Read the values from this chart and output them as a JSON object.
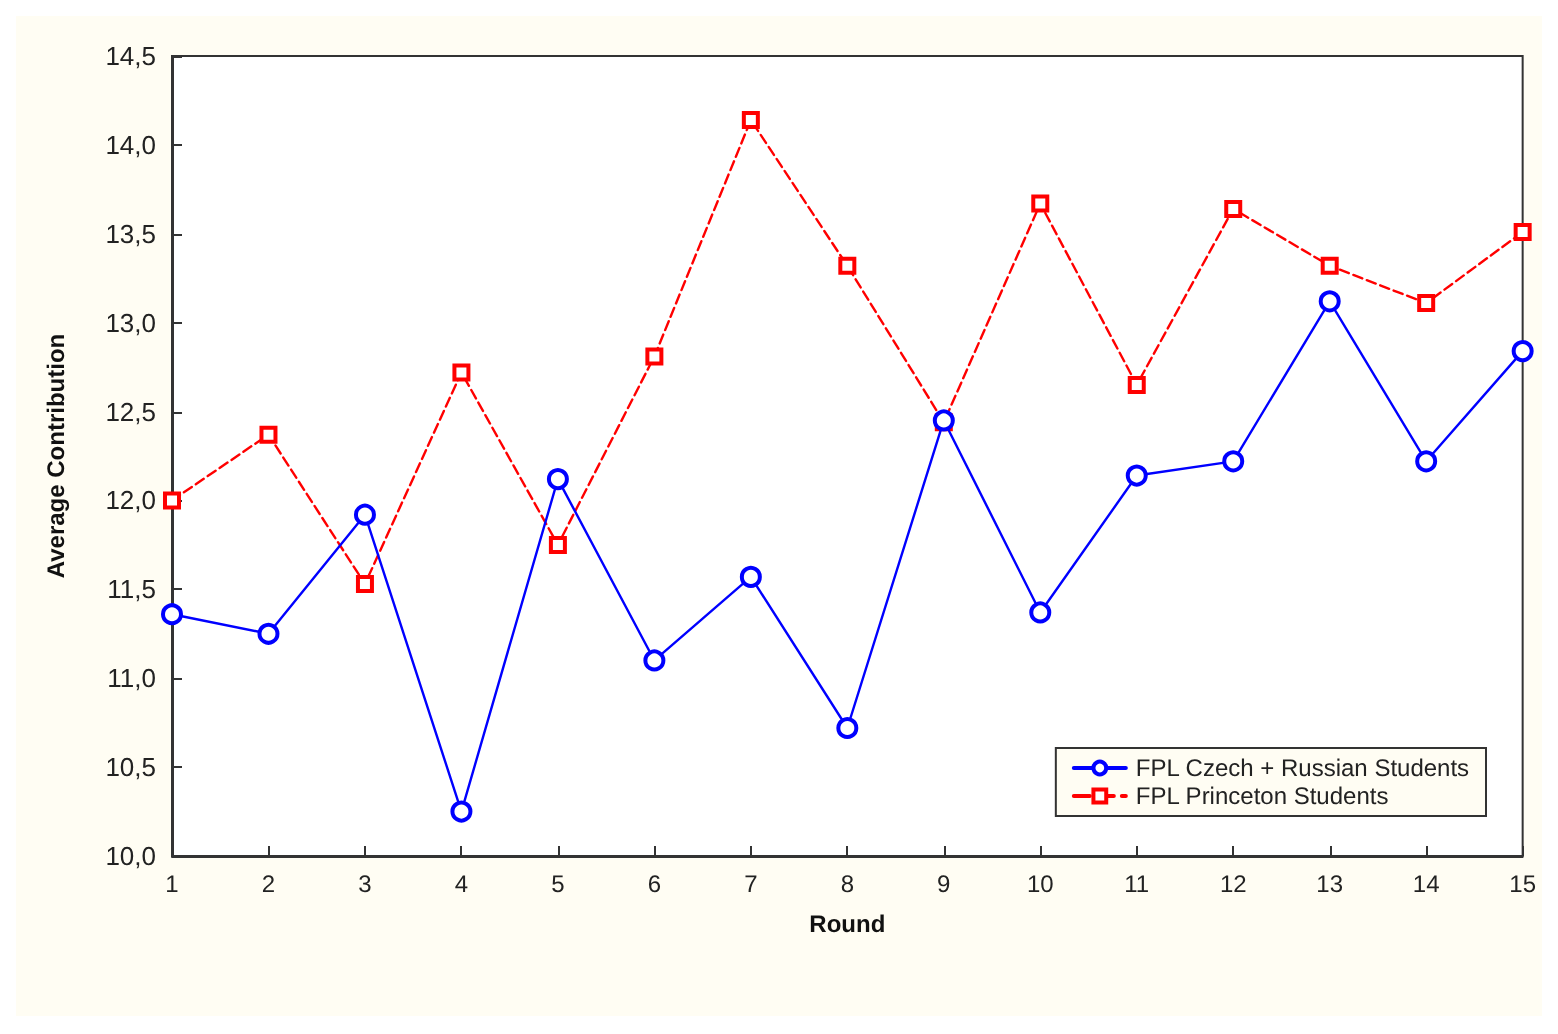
{
  "chart_data": {
    "type": "line",
    "xlabel": "Round",
    "ylabel": "Average Contribution",
    "x": [
      1,
      2,
      3,
      4,
      5,
      6,
      7,
      8,
      9,
      10,
      11,
      12,
      13,
      14,
      15
    ],
    "series": [
      {
        "name": "FPL Czech + Russian Students",
        "color": "#0000ff",
        "marker": "circle",
        "line_style": "solid",
        "values": [
          11.36,
          11.25,
          11.92,
          10.25,
          12.12,
          11.1,
          11.57,
          10.72,
          12.45,
          11.37,
          12.14,
          12.22,
          13.12,
          12.22,
          12.84
        ]
      },
      {
        "name": "FPL Princeton Students",
        "color": "#ff0000",
        "marker": "square",
        "line_style": "dashed",
        "values": [
          12.0,
          12.37,
          11.53,
          12.72,
          11.75,
          12.81,
          14.14,
          13.32,
          12.44,
          13.67,
          12.65,
          13.64,
          13.32,
          13.11,
          13.51
        ]
      }
    ],
    "xlim": [
      1,
      15
    ],
    "xticks": [
      1,
      2,
      3,
      4,
      5,
      6,
      7,
      8,
      9,
      10,
      11,
      12,
      13,
      14,
      15
    ],
    "ylim": [
      10,
      14.5
    ],
    "yticks": [
      {
        "value": 10,
        "label": "10,0"
      },
      {
        "value": 10.5,
        "label": "10,5"
      },
      {
        "value": 11,
        "label": "11,0"
      },
      {
        "value": 11.5,
        "label": "11,5"
      },
      {
        "value": 12,
        "label": "12,0"
      },
      {
        "value": 12.5,
        "label": "12,5"
      },
      {
        "value": 13,
        "label": "13,0"
      },
      {
        "value": 13.5,
        "label": "13,5"
      },
      {
        "value": 14,
        "label": "14,0"
      },
      {
        "value": 14.5,
        "label": "14,5"
      }
    ],
    "grid": false,
    "legend": "bottom right"
  }
}
